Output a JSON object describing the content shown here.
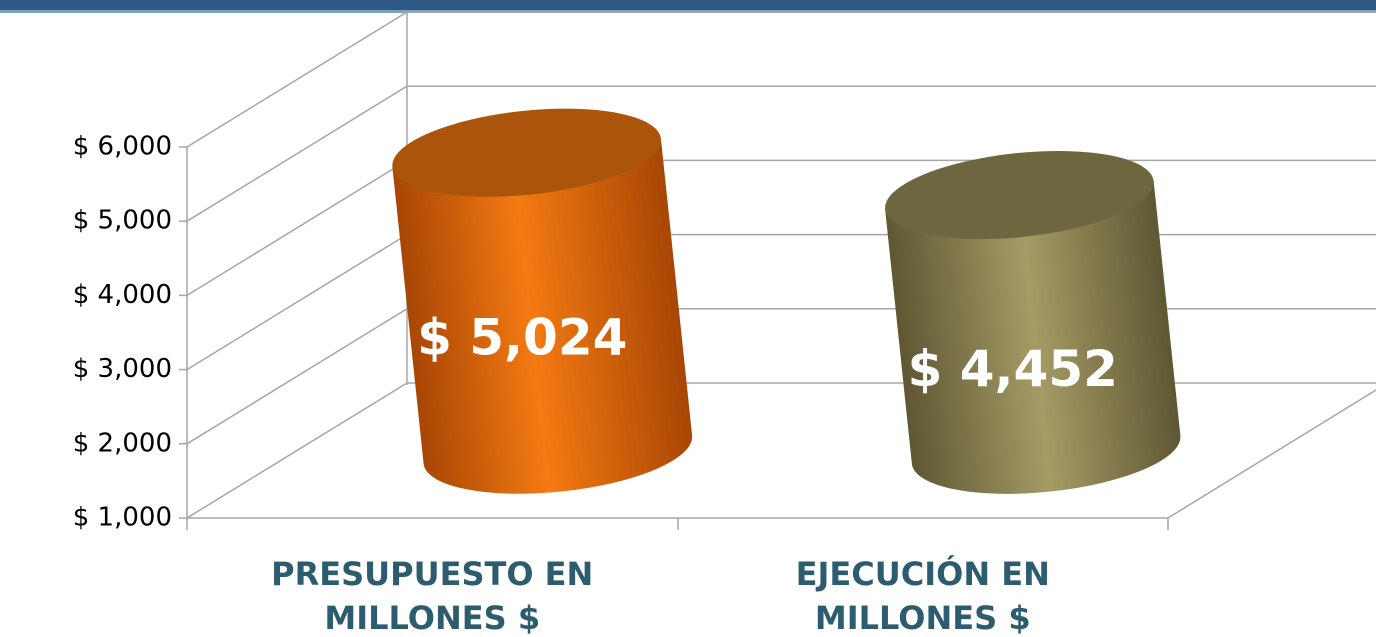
{
  "chart_data": {
    "type": "cylinder",
    "categories": [
      [
        "PRESUPUESTO EN",
        "MILLONES $"
      ],
      [
        "EJECUCIÓN EN",
        "MILLONES $"
      ]
    ],
    "values": [
      5024,
      4452
    ],
    "value_labels": [
      "$ 5,024",
      "$ 4,452"
    ],
    "colors": [
      "#ee7410",
      "#978d58"
    ],
    "ylim": [
      1000,
      6000
    ],
    "yticks": [
      {
        "value": 1000,
        "label": "$ 1,000"
      },
      {
        "value": 2000,
        "label": "$ 2,000"
      },
      {
        "value": 3000,
        "label": "$ 3,000"
      },
      {
        "value": 4000,
        "label": "$ 4,000"
      },
      {
        "value": 5000,
        "label": "$ 5,000"
      },
      {
        "value": 6000,
        "label": "$ 6,000"
      }
    ],
    "grid": true
  }
}
